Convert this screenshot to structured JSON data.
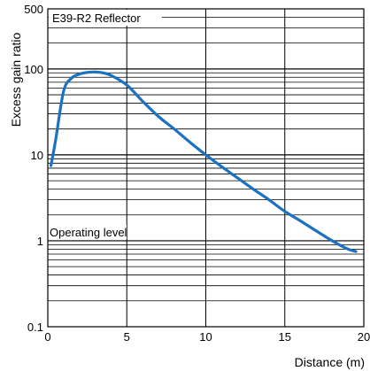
{
  "chart_data": {
    "type": "line",
    "title": "",
    "xlabel": "Distance (m)",
    "ylabel": "Excess gain ratio",
    "x_scale": "linear",
    "y_scale": "log",
    "xlim": [
      0,
      20
    ],
    "ylim": [
      0.1,
      500
    ],
    "x_ticks": [
      "0",
      "5",
      "10",
      "15",
      "20"
    ],
    "y_ticks": [
      "0.1",
      "1",
      "10",
      "100",
      "500"
    ],
    "grid": true,
    "legend": "top-left",
    "annotations": [
      "Operating level"
    ],
    "series": [
      {
        "name": "E39-R2 Reflector",
        "color": "#1a72c0",
        "x": [
          0.2,
          0.5,
          1.0,
          1.5,
          2.0,
          2.5,
          3.0,
          3.5,
          4.0,
          5.0,
          6.0,
          7.0,
          8.0,
          9.0,
          10.0,
          11.0,
          12.0,
          13.0,
          14.0,
          15.0,
          16.0,
          17.0,
          18.0,
          19.0,
          19.5
        ],
        "y": [
          7.5,
          15,
          55,
          78,
          87,
          91,
          92,
          90,
          84,
          65,
          42,
          28,
          20,
          14,
          10,
          7.3,
          5.4,
          4.0,
          3.0,
          2.2,
          1.7,
          1.3,
          1.0,
          0.8,
          0.75
        ]
      }
    ]
  }
}
